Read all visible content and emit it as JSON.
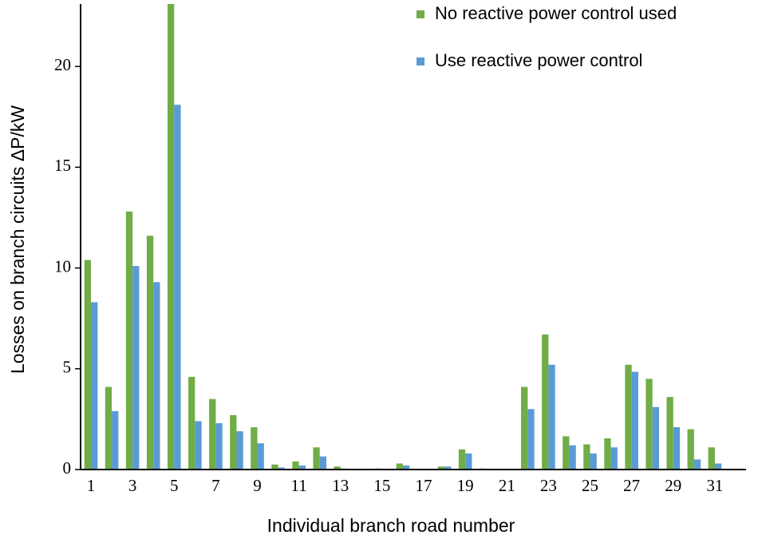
{
  "chart_data": {
    "type": "bar",
    "x_label": "Individual branch road number",
    "y_label": "Losses on branch circuits ΔP/kW",
    "categories": [
      "1",
      null,
      "3",
      null,
      "5",
      null,
      "7",
      null,
      "9",
      null,
      "11",
      null,
      "13",
      null,
      "15",
      null,
      "17",
      null,
      "19",
      null,
      "21",
      null,
      "23",
      null,
      "25",
      null,
      "27",
      null,
      "29",
      null,
      "31",
      null
    ],
    "series": [
      {
        "name": "No reactive power control used",
        "color": "#70ad47",
        "values": [
          10.4,
          4.1,
          12.8,
          11.6,
          23.1,
          4.6,
          3.5,
          2.7,
          2.1,
          0.25,
          0.4,
          1.1,
          0.15,
          0,
          0.05,
          0.3,
          0,
          0.15,
          1.0,
          0.05,
          0,
          4.1,
          6.7,
          1.65,
          1.25,
          1.55,
          5.2,
          4.5,
          3.6,
          2.0,
          1.1,
          0
        ]
      },
      {
        "name": "Use reactive power control",
        "color": "#5b9bd5",
        "values": [
          8.3,
          2.9,
          10.1,
          9.3,
          18.1,
          2.4,
          2.3,
          1.9,
          1.3,
          0.1,
          0.2,
          0.65,
          0.05,
          0,
          0,
          0.2,
          0,
          0.15,
          0.8,
          0,
          0,
          3.0,
          5.2,
          1.2,
          0.8,
          1.1,
          4.85,
          3.1,
          2.1,
          0.5,
          0.3,
          0
        ]
      }
    ],
    "ylim": [
      0,
      23.1
    ],
    "yticks": [
      0,
      5,
      10,
      15,
      20
    ],
    "legend": "upper right"
  }
}
